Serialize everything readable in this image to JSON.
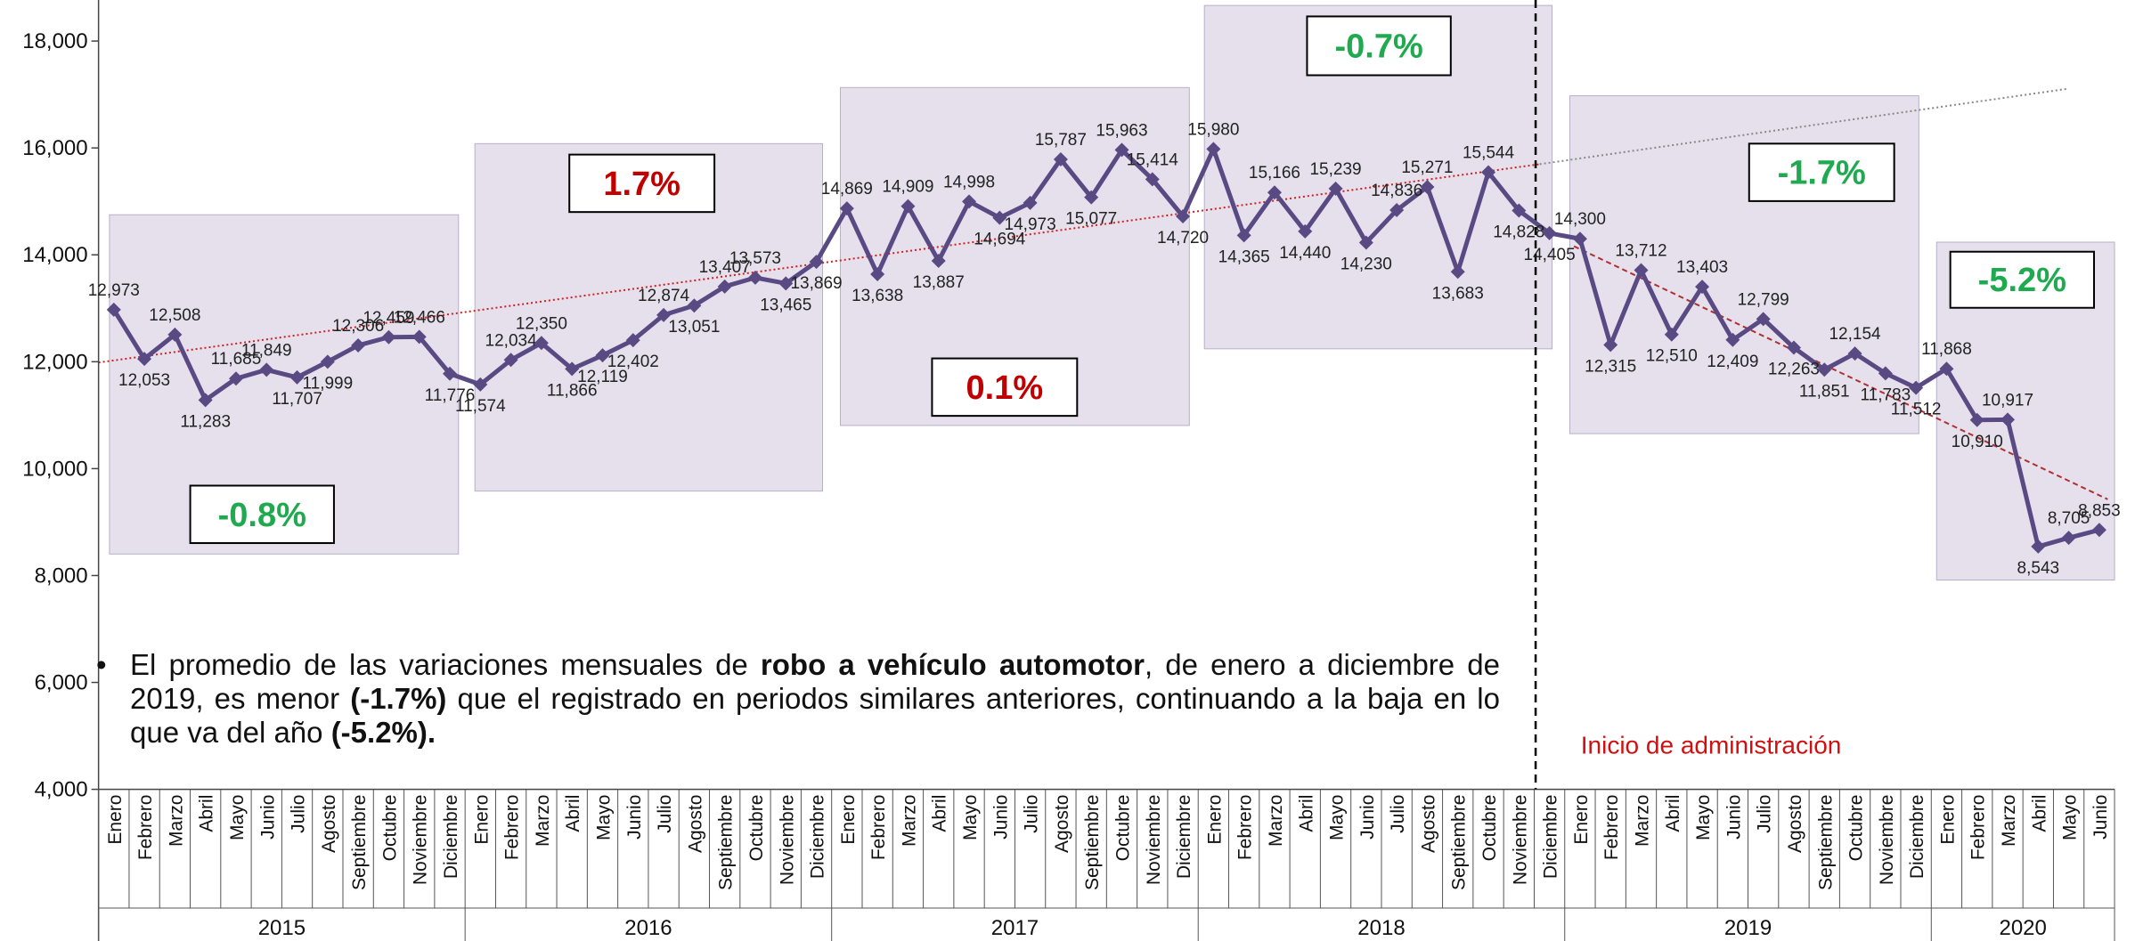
{
  "chart_data": {
    "type": "line",
    "color": "#5a4a84",
    "categories": [
      "Enero",
      "Febrero",
      "Marzo",
      "Abril",
      "Mayo",
      "Junio",
      "Julio",
      "Agosto",
      "Septiembre",
      "Octubre",
      "Noviembre",
      "Diciembre",
      "Enero",
      "Febrero",
      "Marzo",
      "Abril",
      "Mayo",
      "Junio",
      "Julio",
      "Agosto",
      "Septiembre",
      "Octubre",
      "Noviembre",
      "Diciembre",
      "Enero",
      "Febrero",
      "Marzo",
      "Abril",
      "Mayo",
      "Junio",
      "Julio",
      "Agosto",
      "Septiembre",
      "Octubre",
      "Noviembre",
      "Diciembre",
      "Enero",
      "Febrero",
      "Marzo",
      "Abril",
      "Mayo",
      "Junio",
      "Julio",
      "Agosto",
      "Septiembre",
      "Octubre",
      "Noviembre",
      "Diciembre",
      "Enero",
      "Febrero",
      "Marzo",
      "Abril",
      "Mayo",
      "Junio",
      "Julio",
      "Agosto",
      "Septiembre",
      "Octubre",
      "Noviembre",
      "Diciembre",
      "Enero",
      "Febrero",
      "Marzo",
      "Abril",
      "Mayo",
      "Junio"
    ],
    "years": [
      "2015",
      "2016",
      "2017",
      "2018",
      "2019",
      "2020"
    ],
    "values": [
      12973,
      12053,
      12508,
      11283,
      11685,
      11849,
      11707,
      11999,
      12306,
      12459,
      12466,
      11776,
      11574,
      12034,
      12350,
      11866,
      12119,
      12402,
      12874,
      13051,
      13407,
      13573,
      13465,
      13869,
      14869,
      13638,
      14909,
      13887,
      14998,
      14694,
      14973,
      15787,
      15077,
      15963,
      15414,
      14720,
      15980,
      14365,
      15166,
      14440,
      15239,
      14230,
      14836,
      15271,
      13683,
      15544,
      14828,
      14405,
      14300,
      12315,
      13712,
      12510,
      13403,
      12409,
      12799,
      12263,
      11851,
      12154,
      11783,
      11512,
      11868,
      10910,
      10917,
      8543,
      8705,
      8853
    ],
    "value_labels": [
      "12,973",
      "12,053",
      "12,508",
      "11,283",
      "11,685",
      "11,849",
      "11,707",
      "11,999",
      "12,306",
      "12,459",
      "12,466",
      "11,776",
      "11,574",
      "12,034",
      "12,350",
      "11,866",
      "12,119",
      "12,402",
      "12,874",
      "13,051",
      "13,407",
      "13,573",
      "13,465",
      "13,869",
      "14,869",
      "13,638",
      "14,909",
      "13,887",
      "14,998",
      "14,694",
      "14,973",
      "15,787",
      "15,077",
      "15,963",
      "15,414",
      "14,720",
      "15,980",
      "14,365",
      "15,166",
      "14,440",
      "15,239",
      "14,230",
      "14,836",
      "15,271",
      "13,683",
      "15,544",
      "14,828",
      "14,405",
      "14,300",
      "12,315",
      "13,712",
      "12,510",
      "13,403",
      "12,409",
      "12,799",
      "12,263",
      "11,851",
      "12,154",
      "11,783",
      "11,512",
      "11,868",
      "10,910",
      "10,917",
      "8,543",
      "8,705",
      "8,853"
    ],
    "ylim": [
      4000,
      18000
    ],
    "yticks": [
      {
        "value": 4000,
        "label": "4,000"
      },
      {
        "value": 6000,
        "label": "6,000"
      },
      {
        "value": 8000,
        "label": "8,000"
      },
      {
        "value": 10000,
        "label": "10,000"
      },
      {
        "value": 12000,
        "label": "12,000"
      },
      {
        "value": 14000,
        "label": "14,000"
      },
      {
        "value": 16000,
        "label": "16,000"
      },
      {
        "value": 18000,
        "label": "18,000"
      }
    ],
    "annotations": [
      {
        "text": "-0.8%",
        "color": "#1faa50"
      },
      {
        "text": "1.7%",
        "color": "#c00000"
      },
      {
        "text": "0.1%",
        "color": "#c00000"
      },
      {
        "text": "-0.7%",
        "color": "#1faa50"
      },
      {
        "text": "-1.7%",
        "color": "#1faa50"
      },
      {
        "text": "-5.2%",
        "color": "#1faa50"
      }
    ],
    "marker_label": "Inicio de administración",
    "note": [
      "El promedio de las variaciones mensuales de ",
      "robo a vehículo automotor",
      ", de enero a diciembre de 2019, es menor ",
      "(-1.7%)",
      " que el registrado en periodos similares anteriores, continuando a la baja en lo que va del año ",
      "(-5.2%)."
    ]
  }
}
